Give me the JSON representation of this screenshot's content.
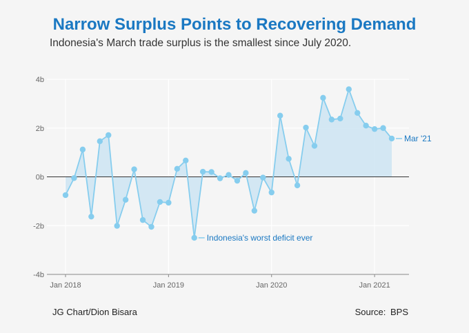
{
  "title": "Narrow Surplus Points to Recovering Demand",
  "subtitle": "Indonesia's March trade surplus is the smallest since July 2020.",
  "footer": {
    "credit": "JG Chart/Dion Bisara",
    "source": "Source:  BPS"
  },
  "colors": {
    "title": "#1a78c2",
    "line": "#86cdee",
    "area": "#cfe6f3",
    "annotation": "#1a78c2"
  },
  "chart_data": {
    "type": "area",
    "title": "",
    "xlabel": "",
    "ylabel": "",
    "ylim": [
      -4,
      4
    ],
    "y_ticks": [
      {
        "value": 4,
        "label": "4b"
      },
      {
        "value": 2,
        "label": "2b"
      },
      {
        "value": 0,
        "label": "0b"
      },
      {
        "value": -2,
        "label": "-2b"
      },
      {
        "value": -4,
        "label": "-4b"
      }
    ],
    "x_ticks": [
      {
        "index": 0,
        "label": "Jan 2018"
      },
      {
        "index": 12,
        "label": "Jan 2019"
      },
      {
        "index": 24,
        "label": "Jan 2020"
      },
      {
        "index": 36,
        "label": "Jan 2021"
      }
    ],
    "grid": true,
    "x": [
      "2018-01",
      "2018-02",
      "2018-03",
      "2018-04",
      "2018-05",
      "2018-06",
      "2018-07",
      "2018-08",
      "2018-09",
      "2018-10",
      "2018-11",
      "2018-12",
      "2019-01",
      "2019-02",
      "2019-03",
      "2019-04",
      "2019-05",
      "2019-06",
      "2019-07",
      "2019-08",
      "2019-09",
      "2019-10",
      "2019-11",
      "2019-12",
      "2020-01",
      "2020-02",
      "2020-03",
      "2020-04",
      "2020-05",
      "2020-06",
      "2020-07",
      "2020-08",
      "2020-09",
      "2020-10",
      "2020-11",
      "2020-12",
      "2021-01",
      "2021-02",
      "2021-03"
    ],
    "series": [
      {
        "values": [
          -0.75,
          -0.05,
          1.12,
          -1.63,
          1.46,
          1.71,
          -2.01,
          -0.94,
          0.31,
          -1.77,
          -2.05,
          -1.03,
          -1.06,
          0.33,
          0.67,
          -2.5,
          0.21,
          0.2,
          -0.06,
          0.08,
          -0.16,
          0.16,
          -1.39,
          -0.03,
          -0.64,
          2.51,
          0.74,
          -0.35,
          2.02,
          1.27,
          3.24,
          2.35,
          2.39,
          3.59,
          2.62,
          2.1,
          1.96,
          2.0,
          1.57
        ]
      }
    ],
    "annotations": [
      {
        "index": 15,
        "text": "Indonesia's worst deficit ever"
      },
      {
        "index": 38,
        "text": "Mar '21"
      }
    ]
  }
}
